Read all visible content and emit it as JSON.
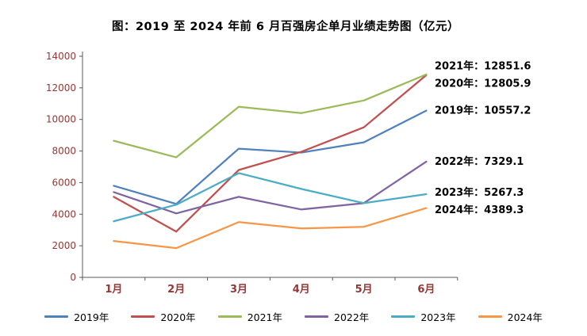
{
  "title": "图：2019 至 2024 年前 6 月百强房企单月业绩走势图（亿元）",
  "colors": {
    "axis_line": "#595959",
    "axis_label": "#953735",
    "annotation": "#000000",
    "title": "#000000"
  },
  "chart_data": {
    "type": "line",
    "title": "图：2019 至 2024 年前 6 月百强房企单月业绩走势图（亿元）",
    "xlabel": "",
    "ylabel": "",
    "ylim": [
      0,
      14000
    ],
    "ytick_step": 2000,
    "yticks": [
      "0",
      "2000",
      "4000",
      "6000",
      "8000",
      "10000",
      "12000",
      "14000"
    ],
    "categories": [
      "1月",
      "2月",
      "3月",
      "4月",
      "5月",
      "6月"
    ],
    "grid": false,
    "legend_position": "bottom",
    "series": [
      {
        "name": "2019年",
        "color": "#4F81BD",
        "values": [
          5800,
          4650,
          8150,
          7900,
          8550,
          10557.2
        ],
        "annotation": "2019年：10557.2"
      },
      {
        "name": "2020年",
        "color": "#C0504D",
        "values": [
          5100,
          2900,
          6800,
          7950,
          9500,
          12805.9
        ],
        "annotation": "2020年：12805.9"
      },
      {
        "name": "2021年",
        "color": "#9BBB59",
        "values": [
          8650,
          7600,
          10800,
          10400,
          11200,
          12851.6
        ],
        "annotation": "2021年：12851.6"
      },
      {
        "name": "2022年",
        "color": "#8064A2",
        "values": [
          5400,
          4050,
          5100,
          4300,
          4700,
          7329.1
        ],
        "annotation": "2022年：7329.1"
      },
      {
        "name": "2023年",
        "color": "#4BACC6",
        "values": [
          3550,
          4600,
          6600,
          5600,
          4700,
          5267.3
        ],
        "annotation": "2023年：5267.3"
      },
      {
        "name": "2024年",
        "color": "#F79646",
        "values": [
          2300,
          1850,
          3500,
          3100,
          3200,
          4389.3
        ],
        "annotation": "2024年：4389.3"
      }
    ]
  },
  "legend": {
    "items": [
      "2019年",
      "2020年",
      "2021年",
      "2022年",
      "2023年",
      "2024年"
    ]
  }
}
